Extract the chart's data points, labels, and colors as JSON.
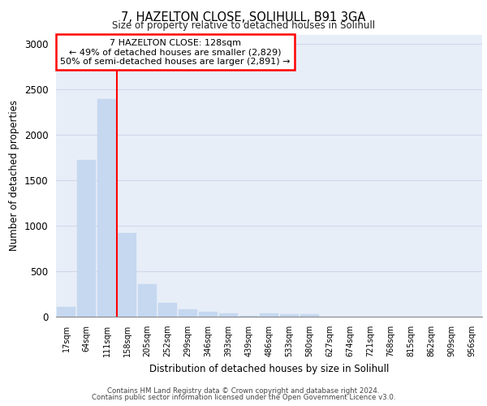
{
  "title": "7, HAZELTON CLOSE, SOLIHULL, B91 3GA",
  "subtitle": "Size of property relative to detached houses in Solihull",
  "xlabel": "Distribution of detached houses by size in Solihull",
  "ylabel": "Number of detached properties",
  "categories": [
    "17sqm",
    "64sqm",
    "111sqm",
    "158sqm",
    "205sqm",
    "252sqm",
    "299sqm",
    "346sqm",
    "393sqm",
    "439sqm",
    "486sqm",
    "533sqm",
    "580sqm",
    "627sqm",
    "674sqm",
    "721sqm",
    "768sqm",
    "815sqm",
    "862sqm",
    "909sqm",
    "956sqm"
  ],
  "values": [
    110,
    1720,
    2390,
    920,
    355,
    150,
    80,
    55,
    40,
    8,
    35,
    30,
    30,
    0,
    0,
    0,
    0,
    0,
    0,
    0,
    0
  ],
  "bar_color": "#c5d8f0",
  "bar_edgecolor": "#c5d8f0",
  "vline_x": 2.5,
  "vline_color": "red",
  "vline_lw": 1.5,
  "annotation_text": "7 HAZELTON CLOSE: 128sqm\n← 49% of detached houses are smaller (2,829)\n50% of semi-detached houses are larger (2,891) →",
  "annotation_box_edgecolor": "red",
  "annotation_box_facecolor": "white",
  "ylim": [
    0,
    3100
  ],
  "yticks": [
    0,
    500,
    1000,
    1500,
    2000,
    2500,
    3000
  ],
  "grid_color": "#d0d8e8",
  "background_color": "#e8eef8",
  "footer_line1": "Contains HM Land Registry data © Crown copyright and database right 2024.",
  "footer_line2": "Contains public sector information licensed under the Open Government Licence v3.0."
}
